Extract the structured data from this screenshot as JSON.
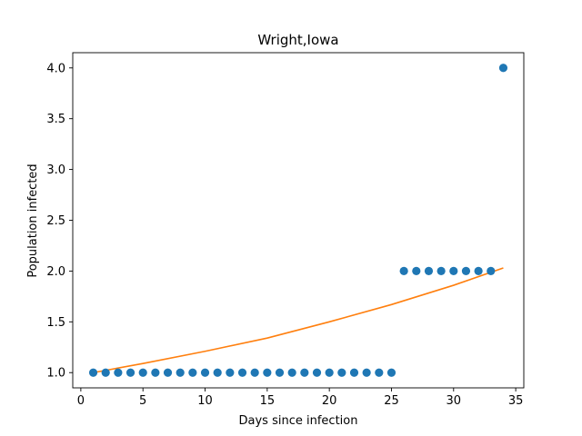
{
  "chart_data": {
    "type": "scatter",
    "title": "Wright,Iowa",
    "xlabel": "Days since infection",
    "ylabel": "Population infected",
    "xlim": [
      -0.65,
      35.65
    ],
    "ylim": [
      0.85,
      4.15
    ],
    "xticks": [
      0,
      5,
      10,
      15,
      20,
      25,
      30,
      35
    ],
    "xtick_labels": [
      "0",
      "5",
      "10",
      "15",
      "20",
      "25",
      "30",
      "35"
    ],
    "yticks": [
      1.0,
      1.5,
      2.0,
      2.5,
      3.0,
      3.5,
      4.0
    ],
    "ytick_labels": [
      "1.0",
      "1.5",
      "2.0",
      "2.5",
      "3.0",
      "3.5",
      "4.0"
    ],
    "grid": false,
    "colors": {
      "points": "#1f77b4",
      "fit": "#ff7f0e"
    },
    "series": [
      {
        "type": "scatter",
        "x": [
          1,
          2,
          3,
          4,
          5,
          6,
          7,
          8,
          9,
          10,
          11,
          12,
          13,
          14,
          15,
          16,
          17,
          18,
          19,
          20,
          21,
          22,
          23,
          24,
          25,
          26,
          27,
          28,
          29,
          30,
          31,
          32,
          33,
          34
        ],
        "y": [
          1,
          1,
          1,
          1,
          1,
          1,
          1,
          1,
          1,
          1,
          1,
          1,
          1,
          1,
          1,
          1,
          1,
          1,
          1,
          1,
          1,
          1,
          1,
          1,
          1,
          2,
          2,
          2,
          2,
          2,
          2,
          2,
          2,
          4
        ]
      },
      {
        "type": "line",
        "x": [
          1,
          5,
          10,
          15,
          20,
          25,
          30,
          34
        ],
        "y": [
          1.0,
          1.09,
          1.21,
          1.34,
          1.5,
          1.67,
          1.86,
          2.03
        ]
      }
    ]
  }
}
